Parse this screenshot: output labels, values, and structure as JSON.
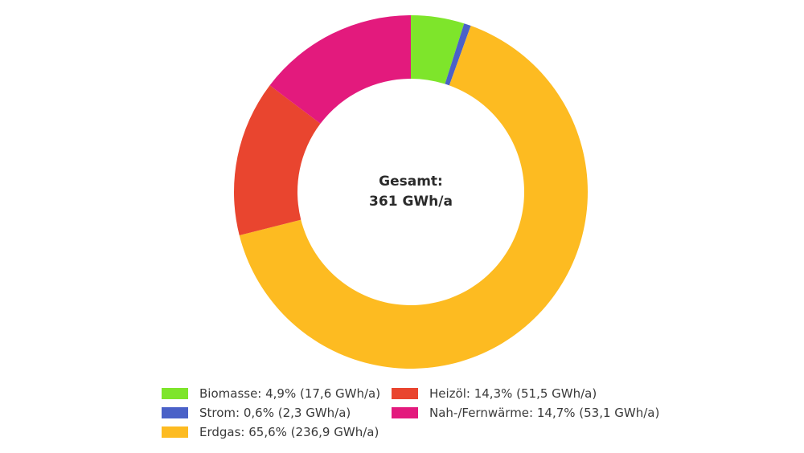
{
  "chart_data": {
    "type": "pie",
    "subtype": "donut",
    "title": "",
    "center_text": [
      "Gesamt:",
      "361 GWh/a"
    ],
    "total": 361,
    "unit": "GWh/a",
    "categories": [
      "Biomasse",
      "Strom",
      "Erdgas",
      "Heizöl",
      "Nah-/Fernwärme"
    ],
    "values": [
      17.6,
      2.3,
      236.9,
      51.5,
      53.1
    ],
    "percentages": [
      4.9,
      0.6,
      65.6,
      14.3,
      14.7
    ],
    "colors": [
      "#7ee52b",
      "#4a61c8",
      "#fdbb21",
      "#e9452f",
      "#e31a7d"
    ],
    "start_angle_deg": 0,
    "direction": "clockwise",
    "legend_position": "bottom",
    "legend": [
      {
        "label": "Biomasse: 4,9% (17,6 GWh/a)",
        "color": "#7ee52b"
      },
      {
        "label": "Strom: 0,6% (2,3 GWh/a)",
        "color": "#4a61c8"
      },
      {
        "label": "Erdgas: 65,6% (236,9 GWh/a)",
        "color": "#fdbb21"
      },
      {
        "label": "Heizöl: 14,3% (51,5 GWh/a)",
        "color": "#e9452f"
      },
      {
        "label": "Nah-/Fernwärme: 14,7% (53,1 GWh/a)",
        "color": "#e31a7d"
      }
    ]
  }
}
